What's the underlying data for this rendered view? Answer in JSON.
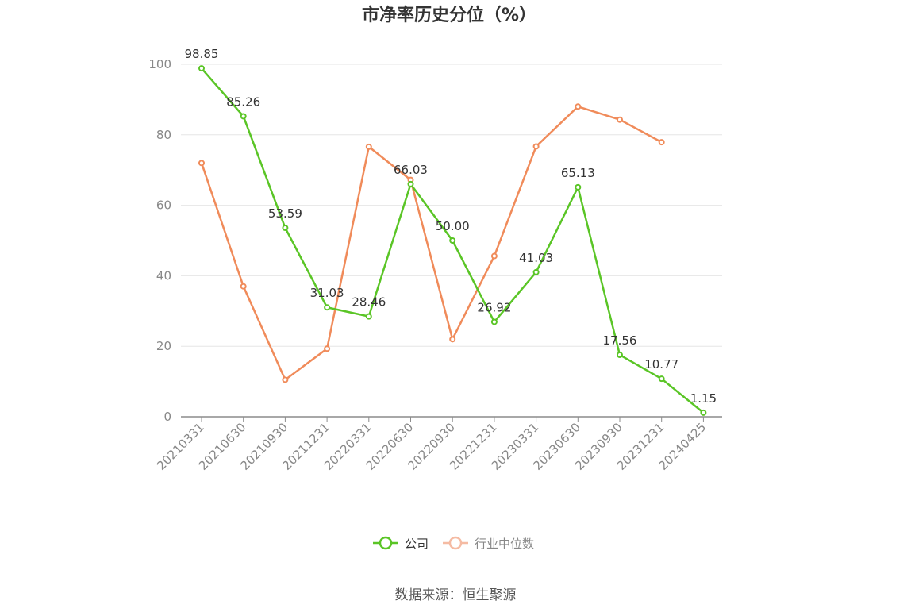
{
  "chart_data": {
    "type": "line",
    "title": "市净率历史分位（%）",
    "categories": [
      "20210331",
      "20210630",
      "20210930",
      "20211231",
      "20220331",
      "20220630",
      "20220930",
      "20221231",
      "20230331",
      "20230630",
      "20230930",
      "20231231",
      "20240425"
    ],
    "series": [
      {
        "name": "公司",
        "color": "#5ac526",
        "show_labels": true,
        "values": [
          98.85,
          85.26,
          53.59,
          31.03,
          28.46,
          66.03,
          50.0,
          26.92,
          41.03,
          65.13,
          17.56,
          10.77,
          1.15
        ],
        "labels": [
          "98.85",
          "85.26",
          "53.59",
          "31.03",
          "28.46",
          "66.03",
          "50.00",
          "26.92",
          "41.03",
          "65.13",
          "17.56",
          "10.77",
          "1.15"
        ]
      },
      {
        "name": "行业中位数",
        "color": "#f08b5a",
        "legend_color": "#f5bba3",
        "show_labels": false,
        "values": [
          72.0,
          37.0,
          10.5,
          19.3,
          76.6,
          67.2,
          22.0,
          45.6,
          76.7,
          88.0,
          84.3,
          77.9,
          null
        ]
      }
    ],
    "y_ticks": [
      "0",
      "20",
      "40",
      "60",
      "80",
      "100"
    ],
    "ylim": [
      0,
      100
    ],
    "grid": true,
    "legend_position": "bottom-center",
    "source": "数据来源：恒生聚源"
  }
}
